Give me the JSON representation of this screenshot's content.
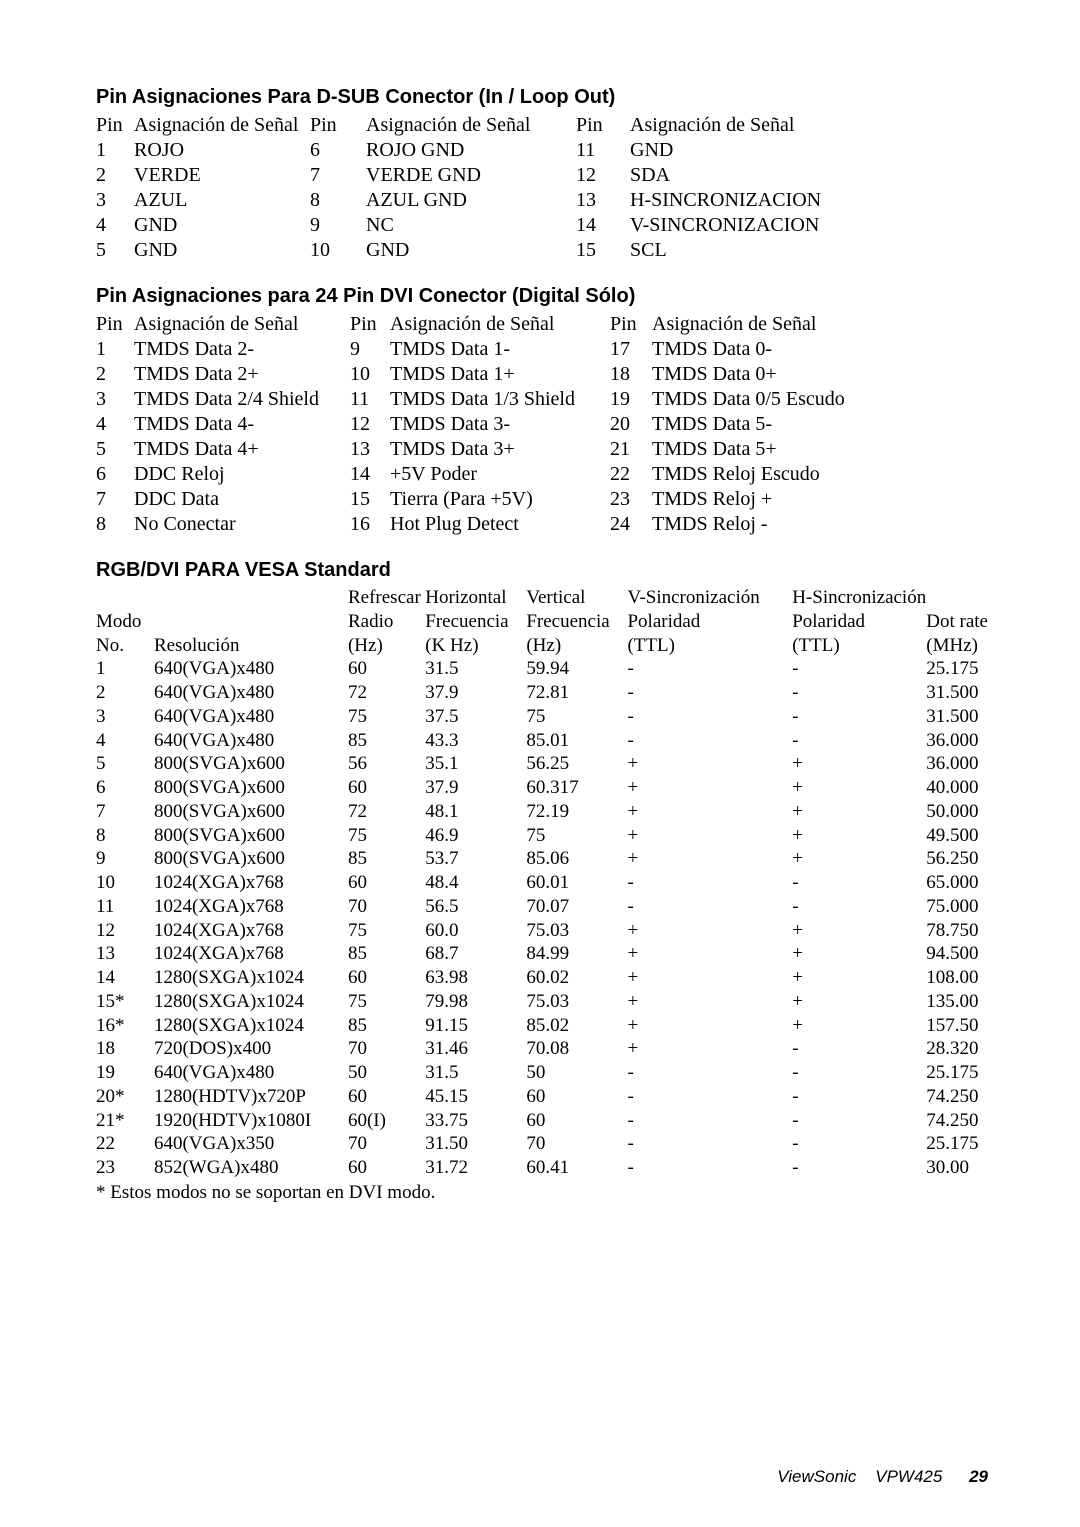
{
  "dsub": {
    "title": "Pin Asignaciones Para D-SUB Conector (In / Loop Out)",
    "header": {
      "pin": "Pin",
      "sig": "Asignación de Señal"
    },
    "rows": [
      [
        "1",
        "ROJO",
        "6",
        "ROJO GND",
        "11",
        "GND"
      ],
      [
        "2",
        "VERDE",
        "7",
        "VERDE GND",
        "12",
        "SDA"
      ],
      [
        "3",
        "AZUL",
        "8",
        "AZUL GND",
        "13",
        "H-SINCRONIZACION"
      ],
      [
        "4",
        "GND",
        "9",
        "NC",
        "14",
        "V-SINCRONIZACION"
      ],
      [
        "5",
        "GND",
        "10",
        "GND",
        "15",
        "SCL"
      ]
    ]
  },
  "dvi": {
    "title": "Pin Asignaciones para 24 Pin DVI Conector (Digital Sólo)",
    "header": {
      "pin": "Pin",
      "sig": "Asignación de Señal"
    },
    "rows": [
      [
        "1",
        "TMDS Data 2-",
        "9",
        "TMDS Data 1-",
        "17",
        "TMDS Data 0-"
      ],
      [
        "2",
        "TMDS Data 2+",
        "10",
        "TMDS Data 1+",
        "18",
        "TMDS Data 0+"
      ],
      [
        "3",
        "TMDS Data 2/4 Shield",
        "11",
        "TMDS Data 1/3 Shield",
        "19",
        "TMDS Data 0/5 Escudo"
      ],
      [
        "4",
        "TMDS Data 4-",
        "12",
        "TMDS Data 3-",
        "20",
        "TMDS Data 5-"
      ],
      [
        "5",
        "TMDS Data 4+",
        "13",
        "TMDS Data 3+",
        "21",
        "TMDS Data 5+"
      ],
      [
        "6",
        "DDC Reloj",
        "14",
        "+5V Poder",
        "22",
        "TMDS Reloj Escudo"
      ],
      [
        "7",
        "DDC Data",
        "15",
        "Tierra (Para +5V)",
        "23",
        "TMDS Reloj +"
      ],
      [
        "8",
        "No Conectar",
        "16",
        "Hot Plug Detect",
        "24",
        "TMDS Reloj -"
      ]
    ]
  },
  "vesa": {
    "title": "RGB/DVI PARA VESA Standard",
    "header1": [
      "",
      "",
      "Refrescar",
      "Horizontal",
      "Vertical",
      "V-Sincronización",
      "H-Sincronización",
      ""
    ],
    "header2": [
      "Modo",
      "",
      "Radio",
      "Frecuencia",
      "Frecuencia",
      "Polaridad",
      "Polaridad",
      "Dot rate"
    ],
    "header3": [
      "No.",
      "Resolución",
      "(Hz)",
      "(K Hz)",
      "(Hz)",
      "(TTL)",
      "(TTL)",
      "(MHz)"
    ],
    "rows": [
      [
        "1",
        "640(VGA)x480",
        "60",
        "31.5",
        "59.94",
        "-",
        "-",
        "25.175"
      ],
      [
        "2",
        "640(VGA)x480",
        "72",
        "37.9",
        "72.81",
        "-",
        "-",
        "31.500"
      ],
      [
        "3",
        "640(VGA)x480",
        "75",
        "37.5",
        "75",
        "-",
        "-",
        "31.500"
      ],
      [
        "4",
        "640(VGA)x480",
        "85",
        "43.3",
        "85.01",
        "-",
        "-",
        "36.000"
      ],
      [
        "5",
        "800(SVGA)x600",
        "56",
        "35.1",
        "56.25",
        "+",
        "+",
        "36.000"
      ],
      [
        "6",
        "800(SVGA)x600",
        "60",
        "37.9",
        "60.317",
        "+",
        "+",
        "40.000"
      ],
      [
        "7",
        "800(SVGA)x600",
        "72",
        "48.1",
        "72.19",
        "+",
        "+",
        "50.000"
      ],
      [
        "8",
        "800(SVGA)x600",
        "75",
        "46.9",
        "75",
        "+",
        "+",
        "49.500"
      ],
      [
        "9",
        "800(SVGA)x600",
        "85",
        "53.7",
        "85.06",
        "+",
        "+",
        "56.250"
      ],
      [
        "10",
        "1024(XGA)x768",
        "60",
        "48.4",
        "60.01",
        "-",
        "-",
        "65.000"
      ],
      [
        "11",
        "1024(XGA)x768",
        "70",
        "56.5",
        "70.07",
        "-",
        "-",
        "75.000"
      ],
      [
        "12",
        "1024(XGA)x768",
        "75",
        "60.0",
        "75.03",
        "+",
        "+",
        "78.750"
      ],
      [
        "13",
        "1024(XGA)x768",
        "85",
        "68.7",
        "84.99",
        "+",
        "+",
        "94.500"
      ],
      [
        "14",
        "1280(SXGA)x1024",
        "60",
        "63.98",
        "60.02",
        "+",
        "+",
        "108.00"
      ],
      [
        "15*",
        "1280(SXGA)x1024",
        "75",
        "79.98",
        "75.03",
        "+",
        "+",
        "135.00"
      ],
      [
        "16*",
        "1280(SXGA)x1024",
        "85",
        "91.15",
        "85.02",
        "+",
        "+",
        "157.50"
      ],
      [
        "18",
        "720(DOS)x400",
        "70",
        "31.46",
        "70.08",
        "+",
        "-",
        "28.320"
      ],
      [
        "19",
        "640(VGA)x480",
        "50",
        "31.5",
        "50",
        "-",
        "-",
        "25.175"
      ],
      [
        "20*",
        "1280(HDTV)x720P",
        "60",
        "45.15",
        "60",
        "-",
        "-",
        "74.250"
      ],
      [
        "21*",
        "1920(HDTV)x1080I",
        "60(I)",
        "33.75",
        "60",
        "-",
        "-",
        "74.250"
      ],
      [
        "22",
        "640(VGA)x350",
        "70",
        "31.50",
        "70",
        "-",
        "-",
        "25.175"
      ],
      [
        "23",
        "852(WGA)x480",
        "60",
        "31.72",
        "60.41",
        "-",
        "-",
        "30.00"
      ]
    ],
    "footnote": "* Estos modos no se soportan en DVI modo."
  },
  "footer": {
    "brand": "ViewSonic",
    "model": "VPW425",
    "page": "29"
  }
}
